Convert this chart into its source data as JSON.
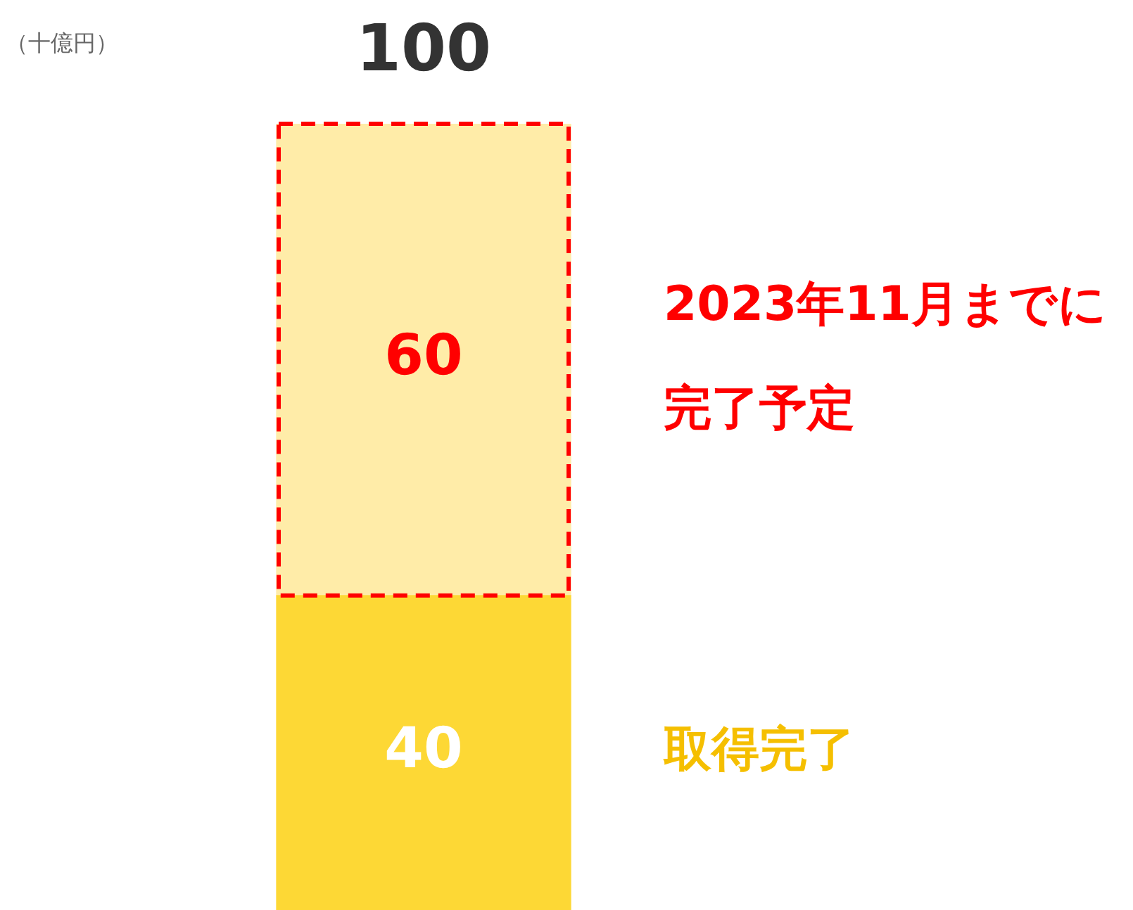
{
  "chart_data": {
    "type": "bar",
    "stacked": true,
    "categories": [
      null
    ],
    "series": [
      {
        "color": "#fdd835",
        "values": [
          40
        ]
      },
      {
        "color": "#ffeca8",
        "values": [
          60
        ],
        "line_style": "dashed"
      }
    ],
    "ylim": [
      0,
      100
    ],
    "tick_labels": false,
    "data_labels": true,
    "totals": [
      "100"
    ],
    "annotations": [
      "（十億円）",
      "2023年11月までに完了予定",
      "取得完了"
    ]
  }
}
